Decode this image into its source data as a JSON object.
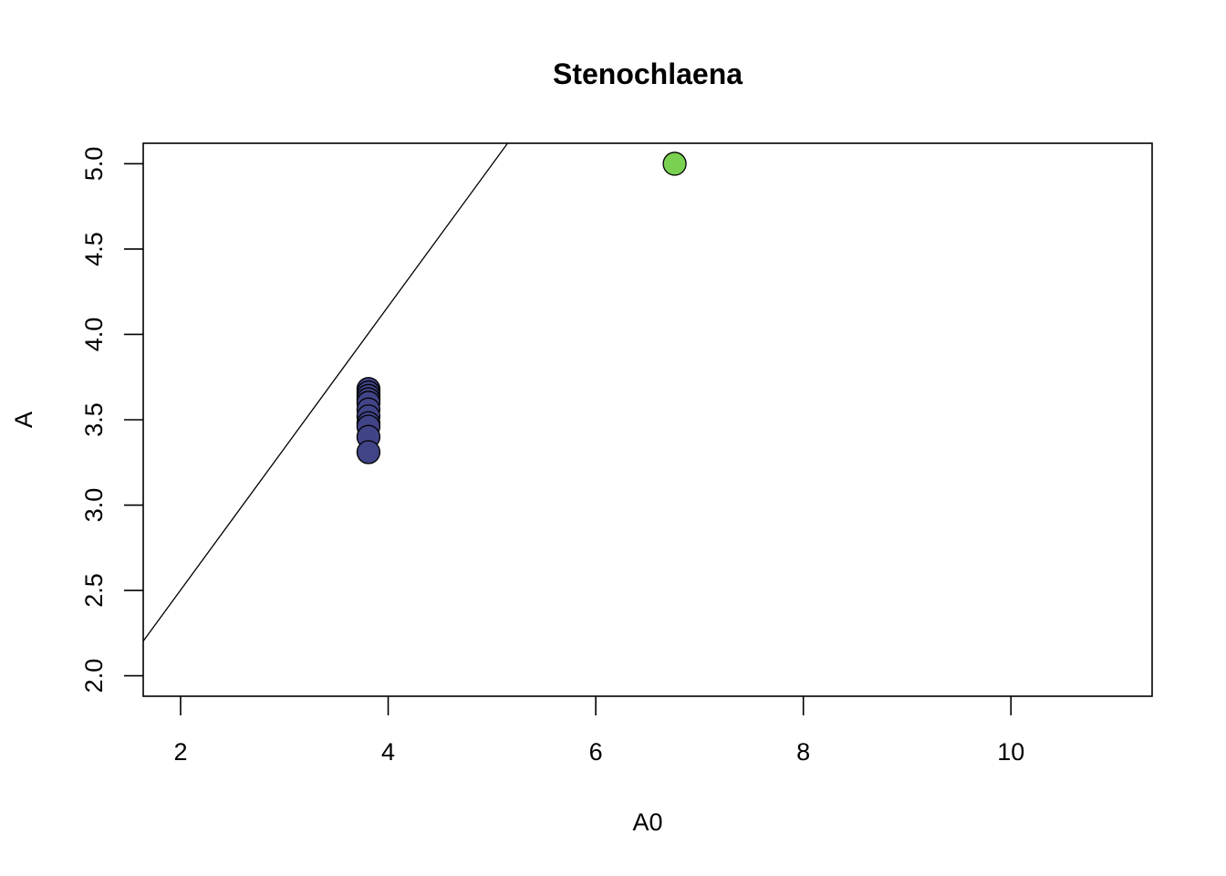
{
  "chart_data": {
    "type": "scatter",
    "title": "Stenochlaena",
    "xlabel": "A0",
    "ylabel": "A",
    "xlim": [
      1.64,
      11.36
    ],
    "ylim": [
      1.88,
      5.12
    ],
    "xticks": [
      2,
      4,
      6,
      8,
      10
    ],
    "yticks": [
      2.0,
      2.5,
      3.0,
      3.5,
      4.0,
      4.5,
      5.0
    ],
    "xtick_labels": [
      "2",
      "4",
      "6",
      "8",
      "10"
    ],
    "ytick_labels": [
      "2.0",
      "2.5",
      "3.0",
      "3.5",
      "4.0",
      "4.5",
      "5.0"
    ],
    "grid": false,
    "legend": "none",
    "series": [
      {
        "color": "#414487",
        "points": [
          {
            "x": 3.81,
            "y": 3.68
          },
          {
            "x": 3.81,
            "y": 3.66
          },
          {
            "x": 3.81,
            "y": 3.64
          },
          {
            "x": 3.81,
            "y": 3.62
          },
          {
            "x": 3.81,
            "y": 3.6
          },
          {
            "x": 3.81,
            "y": 3.56
          },
          {
            "x": 3.81,
            "y": 3.52
          },
          {
            "x": 3.81,
            "y": 3.48
          },
          {
            "x": 3.81,
            "y": 3.46
          },
          {
            "x": 3.81,
            "y": 3.4
          },
          {
            "x": 3.81,
            "y": 3.31
          }
        ]
      },
      {
        "color": "#7AD151",
        "points": [
          {
            "x": 6.76,
            "y": 5.0
          }
        ]
      }
    ],
    "reference_line": {
      "intercept": 0.84,
      "slope": 0.831,
      "color": "#000000"
    }
  }
}
